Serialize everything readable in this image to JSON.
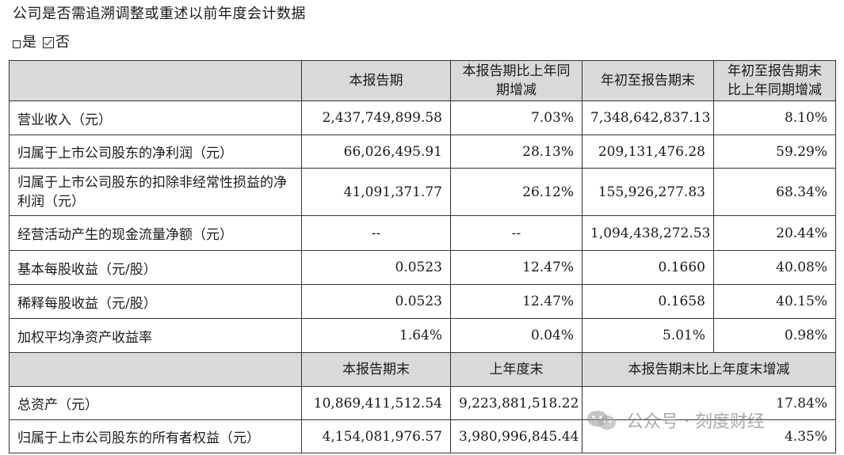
{
  "heading": "公司是否需追溯调整或重述以前年度会计数据",
  "choice": {
    "yes_label": "是",
    "no_label": "否"
  },
  "table": {
    "header1": [
      "本报告期",
      "本报告期比上年同期增减",
      "年初至报告期末",
      "年初至报告期末比上年同期增减"
    ],
    "rows1": [
      {
        "label": "营业收入（元）",
        "values": [
          "2,437,749,899.58",
          "7.03%",
          "7,348,642,837.13",
          "8.10%"
        ]
      },
      {
        "label": "归属于上市公司股东的净利润（元）",
        "values": [
          "66,026,495.91",
          "28.13%",
          "209,131,476.28",
          "59.29%"
        ]
      },
      {
        "label": "归属于上市公司股东的扣除非经常性损益的净利润（元）",
        "values": [
          "41,091,371.77",
          "26.12%",
          "155,926,277.83",
          "68.34%"
        ]
      },
      {
        "label": "经营活动产生的现金流量净额（元）",
        "values": [
          "--",
          "--",
          "1,094,438,272.53",
          "20.44%"
        ]
      },
      {
        "label": "基本每股收益（元/股）",
        "values": [
          "0.0523",
          "12.47%",
          "0.1660",
          "40.08%"
        ]
      },
      {
        "label": "稀释每股收益（元/股）",
        "values": [
          "0.0523",
          "12.47%",
          "0.1658",
          "40.15%"
        ]
      },
      {
        "label": "加权平均净资产收益率",
        "values": [
          "1.64%",
          "0.04%",
          "5.01%",
          "0.98%"
        ]
      }
    ],
    "header2": [
      "本报告期末",
      "上年度末",
      "本报告期末比上年度末增减"
    ],
    "rows2": [
      {
        "label": "总资产（元）",
        "values": [
          "10,869,411,512.54",
          "9,223,881,518.22",
          "17.84%"
        ]
      },
      {
        "label": "归属于上市公司股东的所有者权益（元）",
        "values": [
          "4,154,081,976.57",
          "3,980,996,845.44",
          "4.35%"
        ]
      }
    ]
  },
  "watermark": {
    "text": "公众号 · 刻度财经",
    "icon": "wechat-icon"
  }
}
